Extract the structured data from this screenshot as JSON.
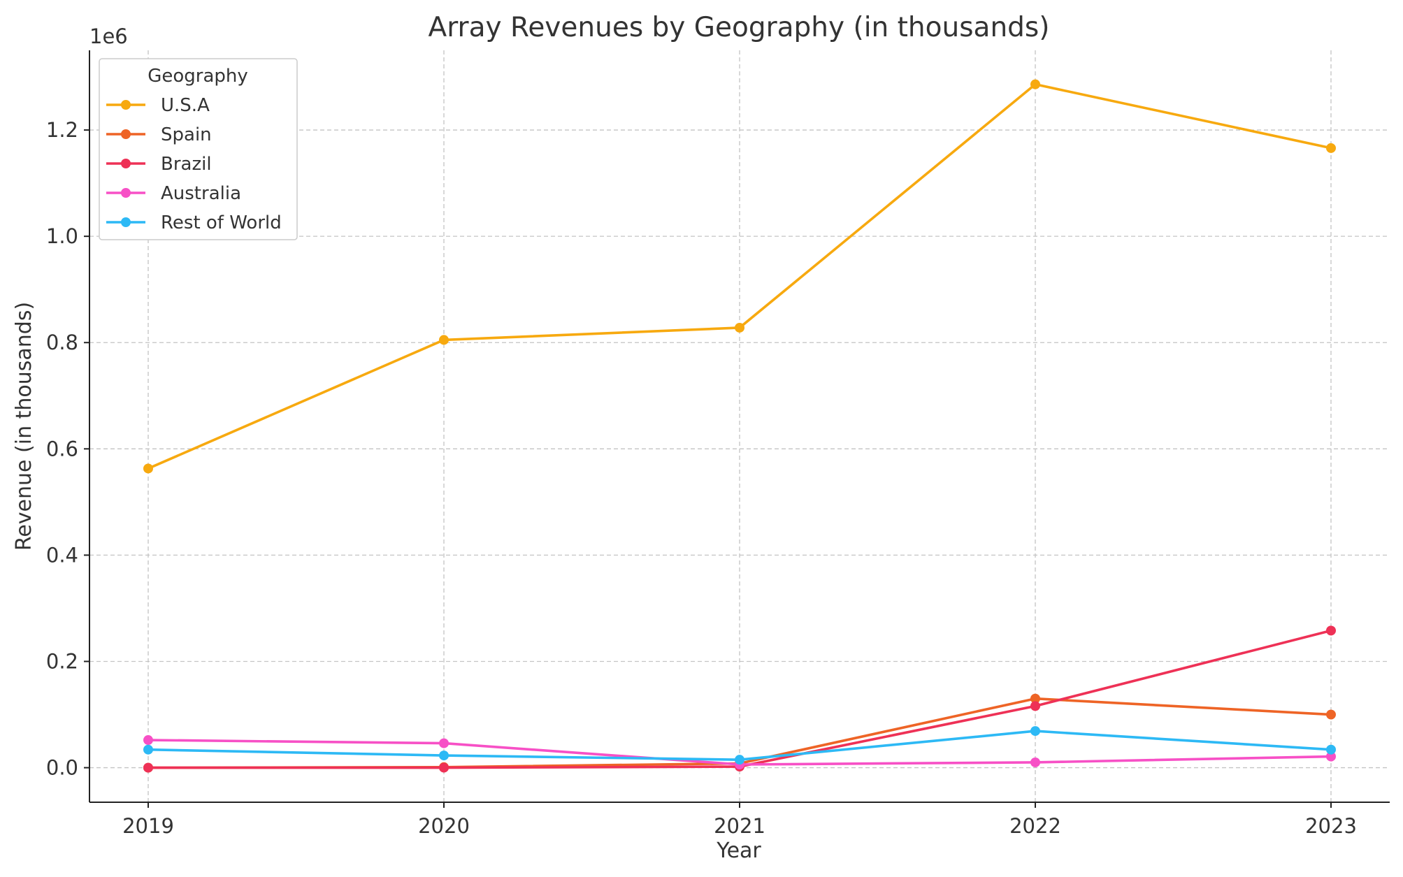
{
  "chart_data": {
    "type": "line",
    "title": "Array Revenues by Geography (in thousands)",
    "xlabel": "Year",
    "ylabel": "Revenue (in thousands)",
    "y_offset_label": "1e6",
    "x": [
      "2019",
      "2020",
      "2021",
      "2022",
      "2023"
    ],
    "ylim": [
      -65000,
      1350000
    ],
    "yticks": [
      0,
      200000,
      400000,
      600000,
      800000,
      1000000,
      1200000
    ],
    "ytick_labels": [
      "0.0",
      "0.2",
      "0.4",
      "0.6",
      "0.8",
      "1.0",
      "1.2"
    ],
    "grid": true,
    "legend_title": "Geography",
    "legend_position": "top-left",
    "series": [
      {
        "name": "U.S.A",
        "color": "#F7A90F",
        "values": [
          563000,
          805000,
          828000,
          1286000,
          1166000
        ]
      },
      {
        "name": "Spain",
        "color": "#EE6426",
        "values": [
          0,
          1000,
          8000,
          130000,
          100000
        ]
      },
      {
        "name": "Brazil",
        "color": "#EE3156",
        "values": [
          0,
          0,
          2000,
          116000,
          258000
        ]
      },
      {
        "name": "Australia",
        "color": "#F750C6",
        "values": [
          52000,
          46000,
          6000,
          10000,
          21000
        ]
      },
      {
        "name": "Rest of World",
        "color": "#2DB9F5",
        "values": [
          34000,
          23000,
          15000,
          69000,
          34000
        ]
      }
    ]
  }
}
